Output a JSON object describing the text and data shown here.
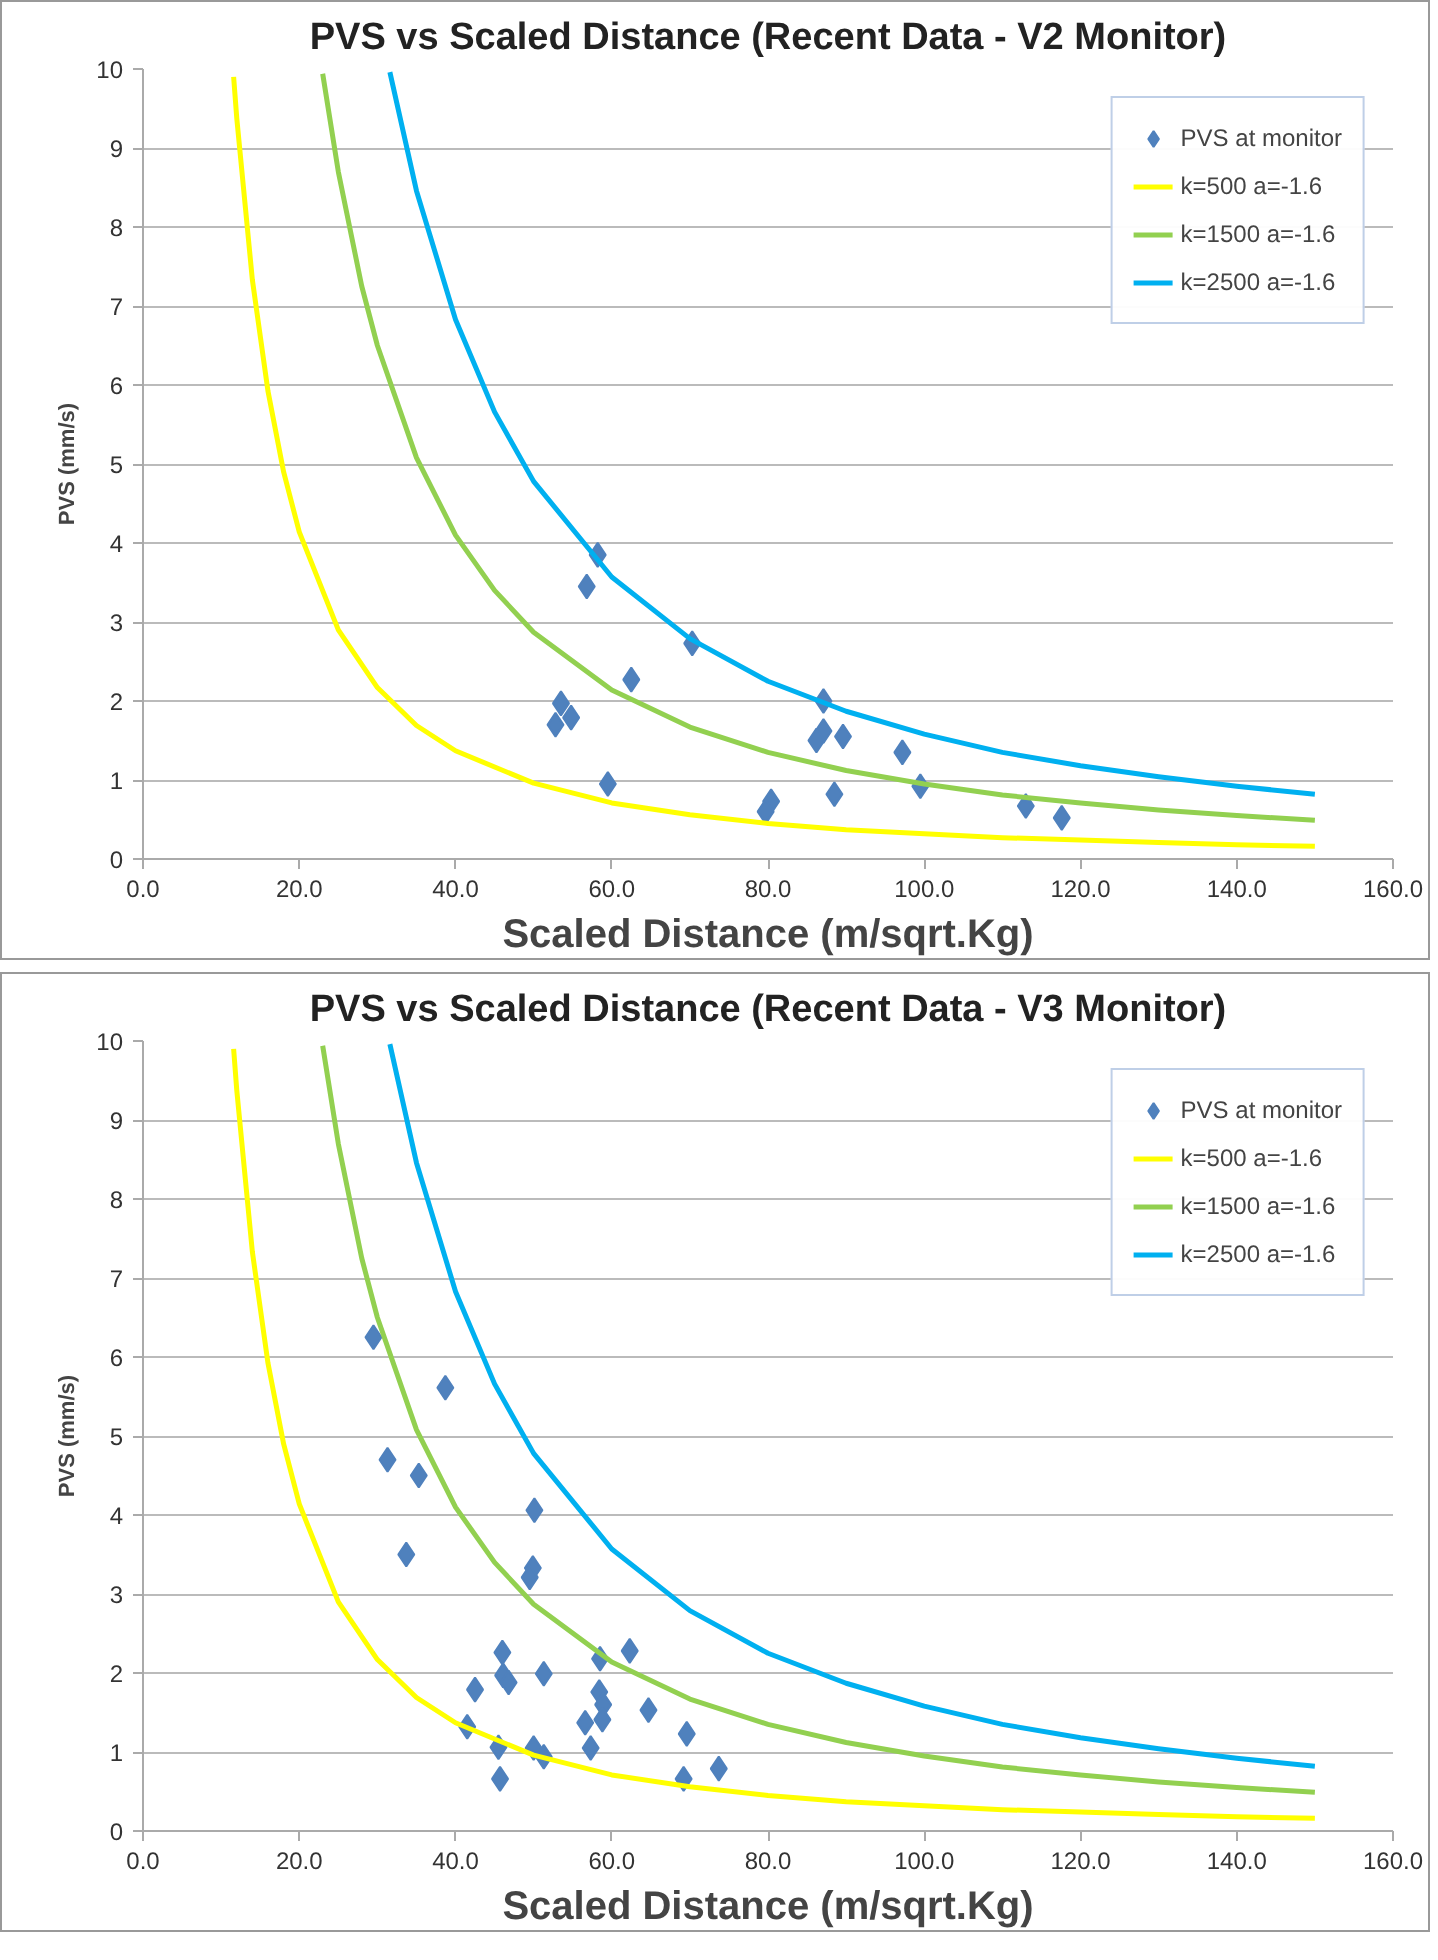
{
  "chart_data": [
    {
      "type": "scatter",
      "title": "PVS vs Scaled Distance (Recent Data - V2 Monitor)",
      "xlabel": "Scaled Distance (m/sqrt.Kg)",
      "ylabel": "PVS (mm/s)",
      "xlim": [
        0,
        160
      ],
      "xticks": [
        {
          "value": 0,
          "label": "0.0"
        },
        {
          "value": 20,
          "label": "20.0"
        },
        {
          "value": 40,
          "label": "40.0"
        },
        {
          "value": 60,
          "label": "60.0"
        },
        {
          "value": 80,
          "label": "80.0"
        },
        {
          "value": 100,
          "label": "100.0"
        },
        {
          "value": 120,
          "label": "120.0"
        },
        {
          "value": 140,
          "label": "140.0"
        },
        {
          "value": 160,
          "label": "160.0"
        }
      ],
      "ylim": [
        0,
        10
      ],
      "yticks": [
        0,
        1,
        2,
        3,
        4,
        5,
        6,
        7,
        8,
        9,
        10
      ],
      "grid": "y",
      "legend": "top right",
      "series": [
        {
          "name": "PVS at monitor",
          "marker": "diamond",
          "color": "#4f81bd",
          "x": [
            58.2,
            56.8,
            70.3,
            62.5,
            53.5,
            54.8,
            52.8,
            59.5,
            87.1,
            87.1,
            86.2,
            89.6,
            97.2,
            88.5,
            99.5,
            80.4,
            79.7,
            113.0,
            117.6
          ],
          "values": [
            3.85,
            3.45,
            2.73,
            2.27,
            1.97,
            1.79,
            1.7,
            0.95,
            2.0,
            1.62,
            1.5,
            1.55,
            1.35,
            0.82,
            0.92,
            0.73,
            0.6,
            0.67,
            0.52
          ]
        },
        {
          "name": "k=500 a=-1.6",
          "type": "line",
          "color": "#ffff00",
          "x": [
            11.6,
            12,
            14,
            16,
            18,
            20,
            25,
            30,
            35,
            40,
            50,
            60,
            70,
            80,
            90,
            100,
            110,
            120,
            130,
            140,
            150
          ],
          "values": [
            9.9,
            9.38,
            7.33,
            5.92,
            4.9,
            4.14,
            2.9,
            2.17,
            1.69,
            1.37,
            0.96,
            0.71,
            0.56,
            0.45,
            0.37,
            0.32,
            0.27,
            0.24,
            0.21,
            0.18,
            0.16
          ]
        },
        {
          "name": "k=1500 a=-1.6",
          "type": "line",
          "color": "#92d050",
          "x": [
            23,
            25,
            28,
            30,
            35,
            40,
            45,
            50,
            60,
            70,
            80,
            90,
            100,
            110,
            120,
            130,
            140,
            150
          ],
          "values": [
            9.94,
            8.7,
            7.25,
            6.5,
            5.08,
            4.1,
            3.4,
            2.87,
            2.14,
            1.67,
            1.35,
            1.12,
            0.95,
            0.81,
            0.71,
            0.62,
            0.55,
            0.49
          ]
        },
        {
          "name": "k=2500 a=-1.6",
          "type": "line",
          "color": "#00b0f0",
          "x": [
            31.6,
            35,
            40,
            45,
            50,
            60,
            70,
            80,
            90,
            100,
            110,
            120,
            130,
            140,
            150
          ],
          "values": [
            9.96,
            8.46,
            6.83,
            5.66,
            4.78,
            3.57,
            2.79,
            2.25,
            1.87,
            1.58,
            1.35,
            1.18,
            1.04,
            0.92,
            0.82
          ]
        }
      ]
    },
    {
      "type": "scatter",
      "title": "PVS vs Scaled Distance (Recent Data - V3 Monitor)",
      "xlabel": "Scaled Distance (m/sqrt.Kg)",
      "ylabel": "PVS (mm/s)",
      "xlim": [
        0,
        160
      ],
      "xticks": [
        {
          "value": 0,
          "label": "0.0"
        },
        {
          "value": 20,
          "label": "20.0"
        },
        {
          "value": 40,
          "label": "40.0"
        },
        {
          "value": 60,
          "label": "60.0"
        },
        {
          "value": 80,
          "label": "80.0"
        },
        {
          "value": 100,
          "label": "100.0"
        },
        {
          "value": 120,
          "label": "120.0"
        },
        {
          "value": 140,
          "label": "140.0"
        },
        {
          "value": 160,
          "label": "160.0"
        }
      ],
      "ylim": [
        0,
        10
      ],
      "yticks": [
        0,
        1,
        2,
        3,
        4,
        5,
        6,
        7,
        8,
        9,
        10
      ],
      "grid": "y",
      "legend": "top right",
      "series": [
        {
          "name": "PVS at monitor",
          "marker": "diamond",
          "color": "#4f81bd",
          "x": [
            29.5,
            38.7,
            31.3,
            35.3,
            33.7,
            50.1,
            49.9,
            49.5,
            46.0,
            46.1,
            46.8,
            42.5,
            51.3,
            58.5,
            62.3,
            58.4,
            58.9,
            58.8,
            56.6,
            64.7,
            41.5,
            45.5,
            50.0,
            51.3,
            57.3,
            69.6,
            45.7,
            69.2,
            73.7
          ],
          "values": [
            6.25,
            5.61,
            4.7,
            4.5,
            3.5,
            4.06,
            3.33,
            3.21,
            2.26,
            1.97,
            1.88,
            1.79,
            1.99,
            2.18,
            2.28,
            1.76,
            1.6,
            1.41,
            1.37,
            1.53,
            1.32,
            1.06,
            1.05,
            0.94,
            1.05,
            1.23,
            0.66,
            0.66,
            0.79
          ]
        },
        {
          "name": "k=500 a=-1.6",
          "type": "line",
          "color": "#ffff00",
          "x": [
            11.6,
            12,
            14,
            16,
            18,
            20,
            25,
            30,
            35,
            40,
            50,
            60,
            70,
            80,
            90,
            100,
            110,
            120,
            130,
            140,
            150
          ],
          "values": [
            9.9,
            9.38,
            7.33,
            5.92,
            4.9,
            4.14,
            2.9,
            2.17,
            1.69,
            1.37,
            0.96,
            0.71,
            0.56,
            0.45,
            0.37,
            0.32,
            0.27,
            0.24,
            0.21,
            0.18,
            0.16
          ]
        },
        {
          "name": "k=1500 a=-1.6",
          "type": "line",
          "color": "#92d050",
          "x": [
            23,
            25,
            28,
            30,
            35,
            40,
            45,
            50,
            60,
            70,
            80,
            90,
            100,
            110,
            120,
            130,
            140,
            150
          ],
          "values": [
            9.94,
            8.7,
            7.25,
            6.5,
            5.08,
            4.1,
            3.4,
            2.87,
            2.14,
            1.67,
            1.35,
            1.12,
            0.95,
            0.81,
            0.71,
            0.62,
            0.55,
            0.49
          ]
        },
        {
          "name": "k=2500 a=-1.6",
          "type": "line",
          "color": "#00b0f0",
          "x": [
            31.6,
            35,
            40,
            45,
            50,
            60,
            70,
            80,
            90,
            100,
            110,
            120,
            130,
            140,
            150
          ],
          "values": [
            9.96,
            8.46,
            6.83,
            5.66,
            4.78,
            3.57,
            2.79,
            2.25,
            1.87,
            1.58,
            1.35,
            1.18,
            1.04,
            0.92,
            0.82
          ]
        }
      ]
    }
  ]
}
